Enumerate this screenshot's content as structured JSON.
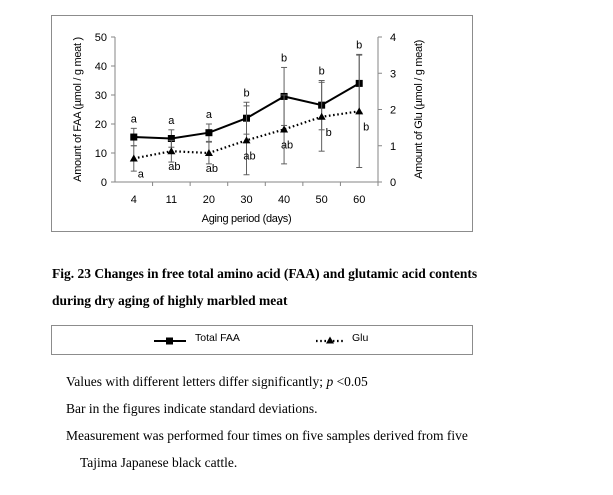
{
  "chart_data": {
    "type": "line",
    "categories": [
      "4",
      "11",
      "20",
      "30",
      "40",
      "50",
      "60"
    ],
    "xlabel": "Aging period (days)",
    "ylabel_left": "Amount of FAA (µmol / g meat )",
    "ylabel_right": "Amount of Glu (µmol / g meat)",
    "ylim_left": [
      0,
      50
    ],
    "yticks_left": [
      "0",
      "10",
      "20",
      "30",
      "40",
      "50"
    ],
    "ylim_right": [
      0,
      4
    ],
    "yticks_right": [
      "0",
      "1",
      "2",
      "3",
      "4"
    ],
    "series": [
      {
        "name": "Total FAA",
        "axis": "left",
        "style": "solid",
        "marker": "square",
        "values": [
          15.5,
          15,
          17,
          22,
          29.5,
          26.5,
          34
        ],
        "err": [
          3,
          3,
          3,
          5.5,
          10,
          8.5,
          10
        ],
        "letters": [
          "a",
          "a",
          "a",
          "b",
          "b",
          "b",
          "b"
        ]
      },
      {
        "name": "Glu",
        "axis": "right",
        "style": "dotted",
        "marker": "triangle",
        "values": [
          0.65,
          0.85,
          0.8,
          1.15,
          1.45,
          1.8,
          1.95
        ],
        "err": [
          0.35,
          0.3,
          0.3,
          0.95,
          0.95,
          0.95,
          1.55
        ],
        "letters": [
          "a",
          "ab",
          "ab",
          "ab",
          "ab",
          "b",
          "b"
        ]
      }
    ]
  },
  "caption": {
    "line1": "Fig. 23     Changes in free total amino acid (FAA) and glutamic acid contents",
    "line2": "during dry aging of highly marbled meat"
  },
  "legend": {
    "total_faa": "Total FAA",
    "glu": "Glu"
  },
  "notes": {
    "line1_pre": "Values with different letters differ significantly; ",
    "line1_p": "p",
    "line1_post": " <0.05",
    "line2": "Bar in the figures indicate standard deviations.",
    "line3": "Measurement was performed four times on five samples derived from five",
    "line4": "Tajima Japanese black cattle."
  }
}
